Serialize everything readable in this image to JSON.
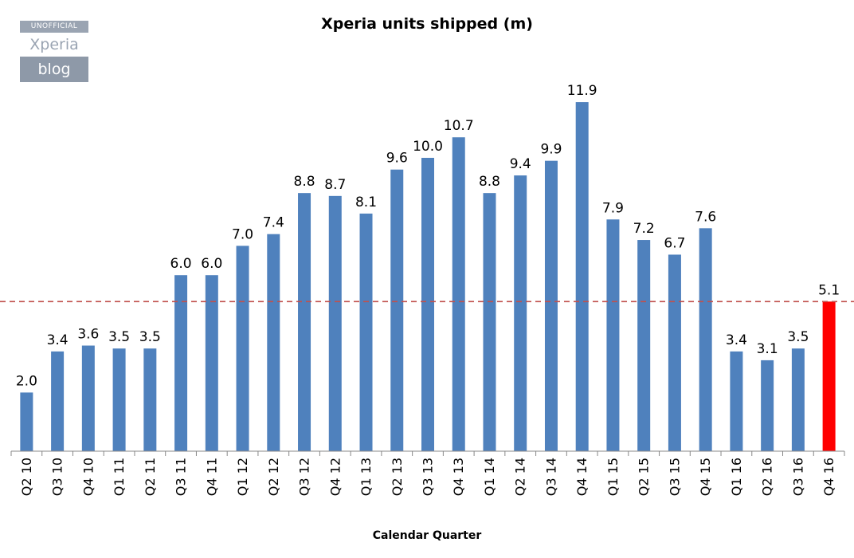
{
  "watermark": {
    "top": "UNOFFICIAL",
    "middle": "Xperia",
    "bottom": "blog"
  },
  "chart_data": {
    "type": "bar",
    "title": "Xperia units shipped (m)",
    "xlabel": "Calendar Quarter",
    "ylabel": "",
    "ylim": [
      0,
      12.5
    ],
    "grid": false,
    "legend": "none",
    "categories": [
      "Q2 10",
      "Q3 10",
      "Q4 10",
      "Q1 11",
      "Q2 11",
      "Q3 11",
      "Q4 11",
      "Q1 12",
      "Q2 12",
      "Q3 12",
      "Q4 12",
      "Q1 13",
      "Q2 13",
      "Q3 13",
      "Q4 13",
      "Q1 14",
      "Q2 14",
      "Q3 14",
      "Q4 14",
      "Q1 15",
      "Q2 15",
      "Q3 15",
      "Q4 15",
      "Q1 16",
      "Q2 16",
      "Q3 16",
      "Q4 16"
    ],
    "values": [
      2.0,
      3.4,
      3.6,
      3.5,
      3.5,
      6.0,
      6.0,
      7.0,
      7.4,
      8.8,
      8.7,
      8.1,
      9.6,
      10.0,
      10.7,
      8.8,
      9.4,
      9.9,
      11.9,
      7.9,
      7.2,
      6.7,
      7.6,
      3.4,
      3.1,
      3.5,
      5.1
    ],
    "value_labels": [
      "2.0",
      "3.4",
      "3.6",
      "3.5",
      "3.5",
      "6.0",
      "6.0",
      "7.0",
      "7.4",
      "8.8",
      "8.7",
      "8.1",
      "9.6",
      "10.0",
      "10.7",
      "8.8",
      "9.4",
      "9.9",
      "11.9",
      "7.9",
      "7.2",
      "6.7",
      "7.6",
      "3.4",
      "3.1",
      "3.5",
      "5.1"
    ],
    "bar_color": "#4f81bd",
    "highlight_index": 26,
    "highlight_color": "#ff0000",
    "reference_line": {
      "value": 5.1,
      "color": "#c0504d",
      "style": "dashed"
    }
  }
}
